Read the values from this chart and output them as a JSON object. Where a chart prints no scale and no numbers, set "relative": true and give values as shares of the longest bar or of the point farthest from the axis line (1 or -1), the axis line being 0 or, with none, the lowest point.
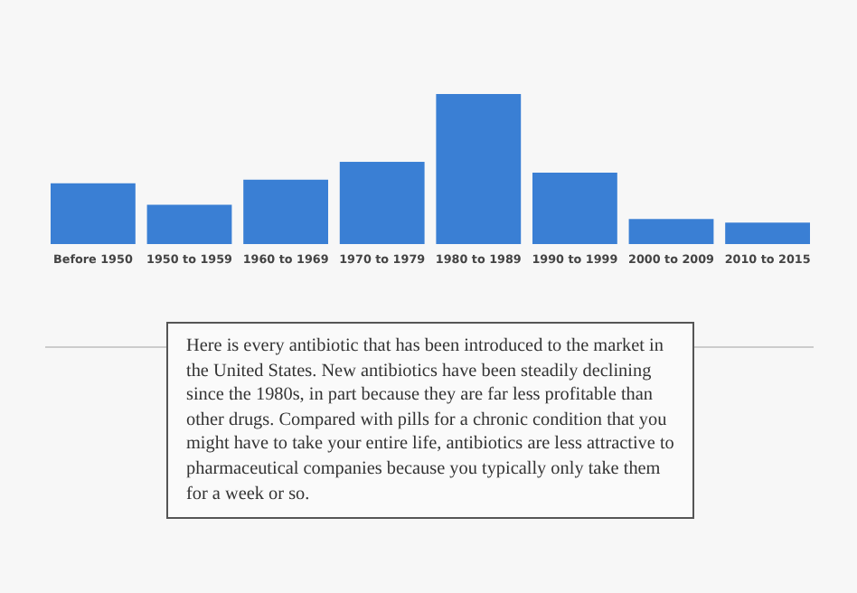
{
  "chart_data": {
    "type": "bar",
    "relative": true,
    "categories": [
      "Before 1950",
      "1950 to 1959",
      "1960 to 1969",
      "1970 to 1979",
      "1980 to 1989",
      "1990 to 1999",
      "2000 to 2009",
      "2010 to 2015"
    ],
    "values": [
      0.405,
      0.262,
      0.429,
      0.548,
      1,
      0.476,
      0.167,
      0.143
    ],
    "color": "#3a7fd4",
    "annotations": [
      "Here is every antibiotic that has been introduced to the market in the United States. New antibiotics have been steadily declining since the 1980s, in part because they are far less profitable than other drugs. Compared with pills for a chronic condition that you might have to take your entire life, antibiotics are less attractive to pharmaceutical companies because you typically only take them for a week or so."
    ]
  }
}
